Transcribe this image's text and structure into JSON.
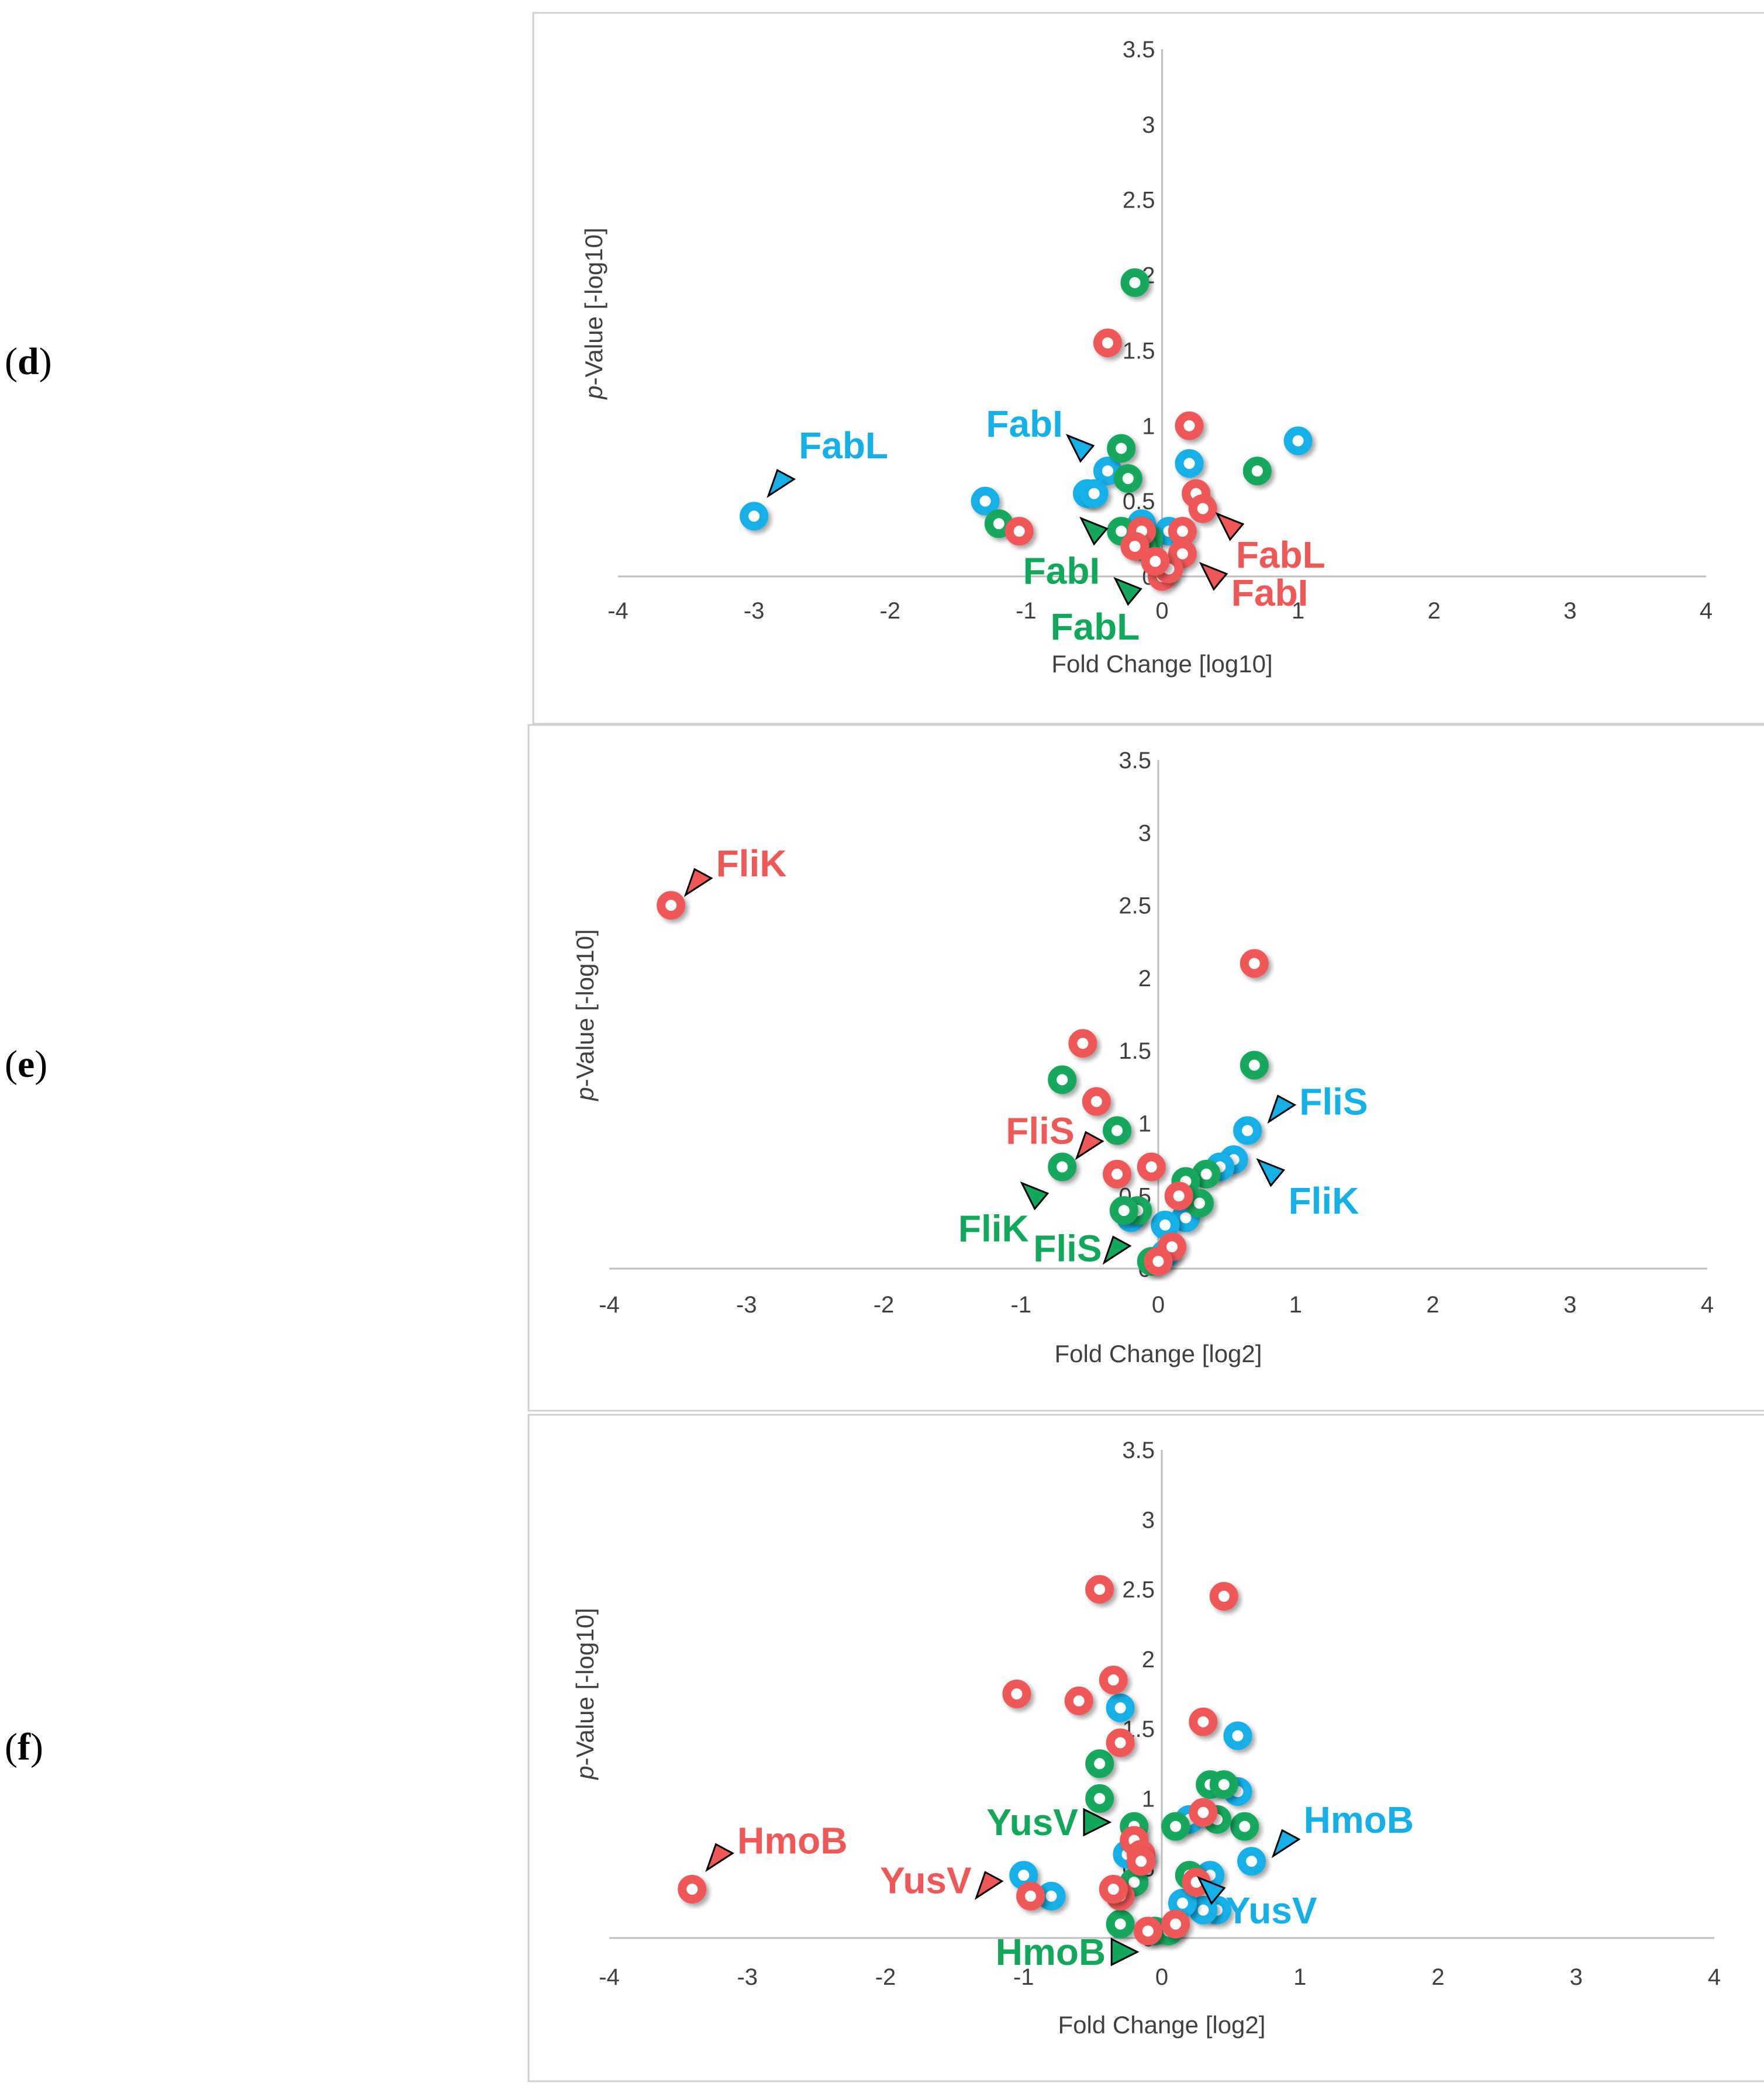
{
  "colors": {
    "red": "#f05858",
    "green": "#12a85c",
    "blue": "#16b0e8",
    "axis": "#bfbfbf",
    "frame": "#d0d0d0",
    "text": "#404040"
  },
  "chart_data": [
    {
      "type": "scatter",
      "panel_label": [
        "(",
        "d",
        ")"
      ],
      "xlabel": "Fold Change [log10]",
      "ylabel_italic": "p",
      "ylabel_rest": "-Value [-log10]",
      "xlim": [
        -4,
        4
      ],
      "ylim": [
        0,
        3.5
      ],
      "x_ticks": [
        "-4",
        "-3",
        "-2",
        "-1",
        "0",
        "1",
        "2",
        "3",
        "4"
      ],
      "y_ticks": [
        "0",
        "0.5",
        "1",
        "1.5",
        "2",
        "2.5",
        "3",
        "3.5"
      ],
      "series": [
        {
          "name": "blue",
          "color": "#16b0e8",
          "points": [
            [
              -3.0,
              0.4
            ],
            [
              -1.3,
              0.5
            ],
            [
              -0.55,
              0.55
            ],
            [
              -0.4,
              0.7
            ],
            [
              -0.5,
              0.55
            ],
            [
              -0.15,
              0.35
            ],
            [
              0.05,
              0.3
            ],
            [
              0.2,
              0.75
            ],
            [
              1.0,
              0.9
            ]
          ]
        },
        {
          "name": "green",
          "color": "#12a85c",
          "points": [
            [
              -0.2,
              1.95
            ],
            [
              -0.3,
              0.85
            ],
            [
              -0.25,
              0.65
            ],
            [
              -1.2,
              0.35
            ],
            [
              -0.3,
              0.3
            ],
            [
              -0.1,
              0.25
            ],
            [
              0.7,
              0.7
            ],
            [
              -0.15,
              0.2
            ],
            [
              0.0,
              0.05
            ]
          ]
        },
        {
          "name": "red",
          "color": "#f05858",
          "points": [
            [
              -0.4,
              1.55
            ],
            [
              0.2,
              1.0
            ],
            [
              -1.05,
              0.3
            ],
            [
              0.25,
              0.55
            ],
            [
              0.3,
              0.45
            ],
            [
              0.15,
              0.3
            ],
            [
              -0.15,
              0.3
            ],
            [
              -0.2,
              0.2
            ],
            [
              0.15,
              0.15
            ],
            [
              0.0,
              0.0
            ],
            [
              0.05,
              0.05
            ],
            [
              -0.05,
              0.1
            ]
          ]
        }
      ],
      "annotations": [
        {
          "text": "FabL",
          "series": "blue",
          "color": "#16b0e8",
          "tx": -2.8,
          "ty": 0.62,
          "dir": "up"
        },
        {
          "text": "FabI",
          "series": "blue",
          "color": "#16b0e8",
          "tx": -0.6,
          "ty": 0.85,
          "dir": "down"
        },
        {
          "text": "FabI",
          "series": "green",
          "color": "#12a85c",
          "tx": -0.5,
          "ty": 0.3,
          "dir": "down"
        },
        {
          "text": "FabL",
          "series": "green",
          "color": "#12a85c",
          "tx": -0.25,
          "ty": -0.1,
          "dir": "down"
        },
        {
          "text": "FabL",
          "series": "red",
          "color": "#f05858",
          "tx": 0.5,
          "ty": 0.33,
          "dir": "down"
        },
        {
          "text": "FabI",
          "series": "red",
          "color": "#f05858",
          "tx": 0.38,
          "ty": 0.0,
          "dir": "down"
        }
      ]
    },
    {
      "type": "scatter",
      "panel_label": [
        "(",
        "e",
        ")"
      ],
      "xlabel": "Fold Change [log2]",
      "ylabel_italic": "p",
      "ylabel_rest": "-Value [-log10]",
      "xlim": [
        -4,
        4
      ],
      "ylim": [
        0,
        3.5
      ],
      "x_ticks": [
        "-4",
        "-3",
        "-2",
        "-1",
        "0",
        "1",
        "2",
        "3",
        "4"
      ],
      "y_ticks": [
        "0",
        "0.5",
        "1",
        "1.5",
        "2",
        "2.5",
        "3",
        "3.5"
      ],
      "series": [
        {
          "name": "blue",
          "color": "#16b0e8",
          "points": [
            [
              0.65,
              0.95
            ],
            [
              0.55,
              0.75
            ],
            [
              0.45,
              0.7
            ],
            [
              0.2,
              0.35
            ],
            [
              0.05,
              0.3
            ],
            [
              0.05,
              0.1
            ],
            [
              -0.2,
              0.35
            ]
          ]
        },
        {
          "name": "green",
          "color": "#12a85c",
          "points": [
            [
              0.7,
              1.4
            ],
            [
              -0.7,
              1.3
            ],
            [
              -0.3,
              0.95
            ],
            [
              -0.7,
              0.7
            ],
            [
              -0.15,
              0.4
            ],
            [
              0.35,
              0.65
            ],
            [
              0.2,
              0.6
            ],
            [
              0.3,
              0.45
            ],
            [
              -0.25,
              0.4
            ],
            [
              -0.05,
              0.05
            ]
          ]
        },
        {
          "name": "red",
          "color": "#f05858",
          "points": [
            [
              -3.55,
              2.5
            ],
            [
              0.7,
              2.1
            ],
            [
              -0.55,
              1.55
            ],
            [
              -0.45,
              1.15
            ],
            [
              -0.3,
              0.65
            ],
            [
              -0.05,
              0.7
            ],
            [
              0.15,
              0.5
            ],
            [
              0.1,
              0.15
            ],
            [
              0.0,
              0.05
            ]
          ]
        }
      ],
      "annotations": [
        {
          "text": "FliK",
          "series": "red",
          "color": "#f05858",
          "tx": -3.35,
          "ty": 2.66,
          "dir": "up"
        },
        {
          "text": "FliS",
          "series": "red",
          "color": "#f05858",
          "tx": -0.5,
          "ty": 0.85,
          "dir": "up"
        },
        {
          "text": "FliK",
          "series": "green",
          "color": "#12a85c",
          "tx": -0.9,
          "ty": 0.5,
          "dir": "down"
        },
        {
          "text": "FliS",
          "series": "green",
          "color": "#12a85c",
          "tx": -0.3,
          "ty": 0.13,
          "dir": "up"
        },
        {
          "text": "FliS",
          "series": "blue",
          "color": "#16b0e8",
          "tx": 0.9,
          "ty": 1.1,
          "dir": "up"
        },
        {
          "text": "FliK",
          "series": "blue",
          "color": "#16b0e8",
          "tx": 0.82,
          "ty": 0.66,
          "dir": "down"
        }
      ]
    },
    {
      "type": "scatter",
      "panel_label": [
        "(",
        "f",
        ")"
      ],
      "xlabel": "Fold Change [log2]",
      "ylabel_italic": "p",
      "ylabel_rest": "-Value [-log10]",
      "xlim": [
        -4,
        4
      ],
      "ylim": [
        0,
        3.5
      ],
      "x_ticks": [
        "-4",
        "-3",
        "-2",
        "-1",
        "0",
        "1",
        "2",
        "3",
        "4"
      ],
      "y_ticks": [
        "0",
        "0.5",
        "1",
        "1.5",
        "2",
        "2.5",
        "3",
        "3.5"
      ],
      "series": [
        {
          "name": "blue",
          "color": "#16b0e8",
          "points": [
            [
              -0.3,
              1.65
            ],
            [
              0.55,
              1.45
            ],
            [
              0.55,
              1.05
            ],
            [
              0.65,
              0.55
            ],
            [
              -0.25,
              0.6
            ],
            [
              0.2,
              0.85
            ],
            [
              0.35,
              0.45
            ],
            [
              0.4,
              0.2
            ],
            [
              0.3,
              0.2
            ],
            [
              -1.0,
              0.45
            ],
            [
              -0.8,
              0.3
            ],
            [
              0.15,
              0.25
            ]
          ]
        },
        {
          "name": "green",
          "color": "#12a85c",
          "points": [
            [
              -0.45,
              1.25
            ],
            [
              -0.45,
              1.0
            ],
            [
              0.35,
              1.1
            ],
            [
              0.45,
              1.1
            ],
            [
              0.6,
              0.8
            ],
            [
              -0.2,
              0.8
            ],
            [
              0.1,
              0.8
            ],
            [
              0.4,
              0.85
            ],
            [
              -0.2,
              0.4
            ],
            [
              0.2,
              0.45
            ],
            [
              -0.3,
              0.1
            ],
            [
              -0.05,
              0.05
            ],
            [
              0.05,
              0.05
            ]
          ]
        },
        {
          "name": "red",
          "color": "#f05858",
          "points": [
            [
              -0.45,
              2.5
            ],
            [
              0.45,
              2.45
            ],
            [
              -0.35,
              1.85
            ],
            [
              -1.05,
              1.75
            ],
            [
              -0.6,
              1.7
            ],
            [
              0.3,
              1.55
            ],
            [
              -0.3,
              1.4
            ],
            [
              0.3,
              0.9
            ],
            [
              -0.2,
              0.7
            ],
            [
              -0.15,
              0.6
            ],
            [
              -0.15,
              0.55
            ],
            [
              -3.4,
              0.35
            ],
            [
              -0.95,
              0.3
            ],
            [
              -0.3,
              0.3
            ],
            [
              -0.35,
              0.35
            ],
            [
              0.25,
              0.4
            ],
            [
              -0.1,
              0.05
            ],
            [
              0.1,
              0.1
            ]
          ]
        }
      ],
      "annotations": [
        {
          "text": "HmoB",
          "series": "red",
          "color": "#f05858",
          "tx": -3.2,
          "ty": 0.58,
          "dir": "up"
        },
        {
          "text": "YusV",
          "series": "red",
          "color": "#f05858",
          "tx": -1.25,
          "ty": 0.38,
          "dir": "up"
        },
        {
          "text": "YusV",
          "series": "green",
          "color": "#12a85c",
          "tx": -0.47,
          "ty": 0.83,
          "dir": "right"
        },
        {
          "text": "HmoB",
          "series": "green",
          "color": "#12a85c",
          "tx": -0.27,
          "ty": -0.1,
          "dir": "right"
        },
        {
          "text": "HmoB",
          "series": "blue",
          "color": "#16b0e8",
          "tx": 0.9,
          "ty": 0.68,
          "dir": "up"
        },
        {
          "text": "YusV",
          "series": "blue",
          "color": "#16b0e8",
          "tx": 0.36,
          "ty": 0.34,
          "dir": "down"
        }
      ]
    }
  ]
}
